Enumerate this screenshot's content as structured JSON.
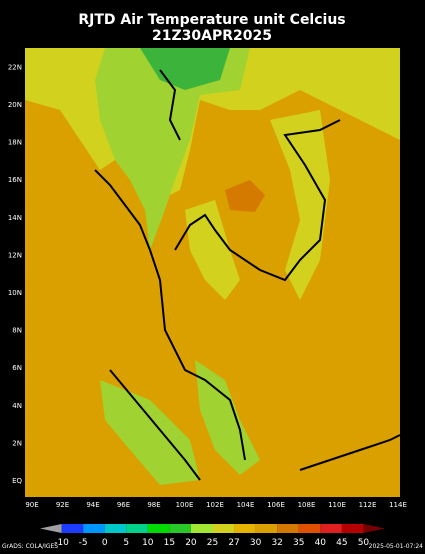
{
  "header": {
    "title": "RJTD Air Temperature unit Celcius",
    "subtitle": "21Z30APR2025"
  },
  "axes": {
    "lon_labels": [
      "90E",
      "92E",
      "94E",
      "96E",
      "98E",
      "100E",
      "102E",
      "104E",
      "106E",
      "108E",
      "110E",
      "112E",
      "114E"
    ],
    "lat_labels": [
      "EQ",
      "2N",
      "4N",
      "6N",
      "8N",
      "10N",
      "12N",
      "14N",
      "16N",
      "18N",
      "20N",
      "22N"
    ]
  },
  "colorbar": {
    "labels": [
      "-10",
      "-5",
      "0",
      "5",
      "10",
      "15",
      "20",
      "25",
      "27",
      "30",
      "32",
      "35",
      "40",
      "45",
      "50"
    ],
    "colors": [
      "#a0a0a0",
      "#1e3cff",
      "#0096ff",
      "#00c8c8",
      "#00d28c",
      "#00dc00",
      "#28c828",
      "#a0e632",
      "#d2d21e",
      "#e6b400",
      "#d9a000",
      "#d47a00",
      "#e05000",
      "#e02020",
      "#b40000",
      "#780000"
    ]
  },
  "footer": {
    "left": "GrADS: COLA/IGES",
    "right": "2025-05-01-07:24"
  }
}
